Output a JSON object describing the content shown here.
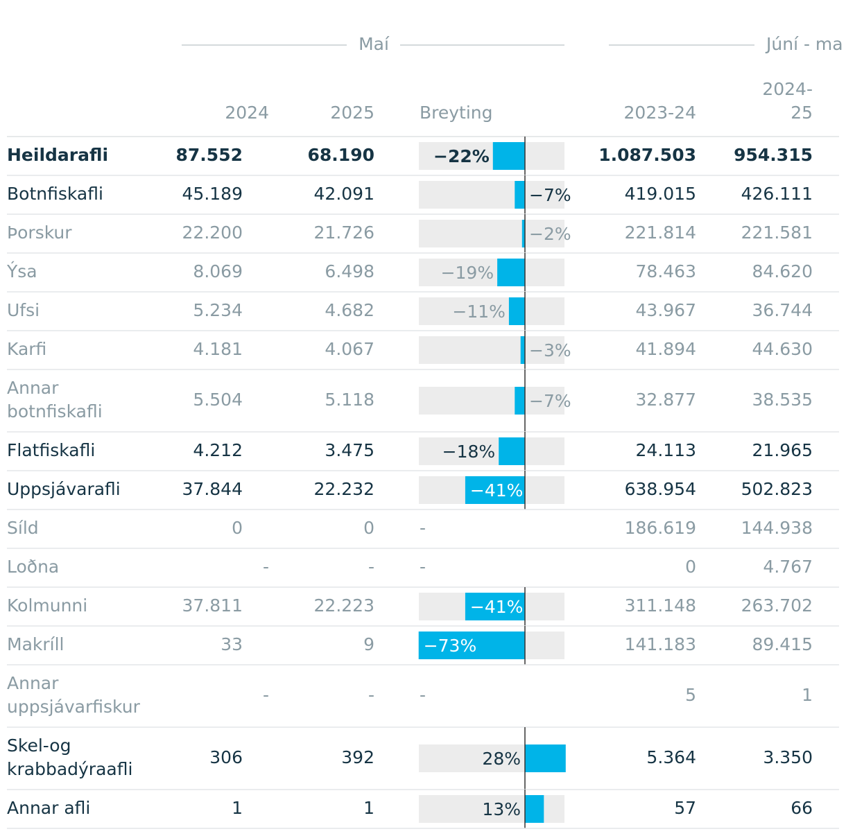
{
  "header": {
    "group1": "Maí",
    "group2": "Júní - ma",
    "columns": [
      [
        "2024"
      ],
      [
        "2025"
      ],
      [
        "Breyting"
      ],
      [
        "2023-24"
      ],
      [
        "2024-",
        "25"
      ]
    ]
  },
  "table": {
    "rows": [
      {
        "label": [
          "Heildarafli"
        ],
        "style": "bold",
        "v2024": "87.552",
        "v2025": "68.190",
        "change": -22,
        "change_label": "−22%",
        "v2324": "1.087.503",
        "v2425": "954.315"
      },
      {
        "label": [
          "Botnfiskafli"
        ],
        "style": "dark",
        "v2024": "45.189",
        "v2025": "42.091",
        "change": -7,
        "change_label": "−7%",
        "v2324": "419.015",
        "v2425": "426.111"
      },
      {
        "label": [
          "Þorskur"
        ],
        "style": "grey",
        "v2024": "22.200",
        "v2025": "21.726",
        "change": -2,
        "change_label": "−2%",
        "v2324": "221.814",
        "v2425": "221.581"
      },
      {
        "label": [
          "Ýsa"
        ],
        "style": "grey",
        "v2024": "8.069",
        "v2025": "6.498",
        "change": -19,
        "change_label": "−19%",
        "v2324": "78.463",
        "v2425": "84.620"
      },
      {
        "label": [
          "Ufsi"
        ],
        "style": "grey",
        "v2024": "5.234",
        "v2025": "4.682",
        "change": -11,
        "change_label": "−11%",
        "v2324": "43.967",
        "v2425": "36.744"
      },
      {
        "label": [
          "Karfi"
        ],
        "style": "grey",
        "v2024": "4.181",
        "v2025": "4.067",
        "change": -3,
        "change_label": "−3%",
        "v2324": "41.894",
        "v2425": "44.630"
      },
      {
        "label": [
          "Annar",
          "botnfiskafli"
        ],
        "style": "grey",
        "v2024": "5.504",
        "v2025": "5.118",
        "change": -7,
        "change_label": "−7%",
        "v2324": "32.877",
        "v2425": "38.535"
      },
      {
        "label": [
          "Flatfiskafli"
        ],
        "style": "dark",
        "v2024": "4.212",
        "v2025": "3.475",
        "change": -18,
        "change_label": "−18%",
        "v2324": "24.113",
        "v2425": "21.965"
      },
      {
        "label": [
          "Uppsjávarafli"
        ],
        "style": "dark",
        "v2024": "37.844",
        "v2025": "22.232",
        "change": -41,
        "change_label": "−41%",
        "v2324": "638.954",
        "v2425": "502.823"
      },
      {
        "label": [
          "Síld"
        ],
        "style": "grey",
        "v2024": "0",
        "v2025": "0",
        "change": null,
        "change_label": "-",
        "v2324": "186.619",
        "v2425": "144.938"
      },
      {
        "label": [
          "Loðna"
        ],
        "style": "grey",
        "v2024": "-",
        "v2025": "-",
        "change": null,
        "change_label": "-",
        "v2324": "0",
        "v2425": "4.767"
      },
      {
        "label": [
          "Kolmunni"
        ],
        "style": "grey",
        "v2024": "37.811",
        "v2025": "22.223",
        "change": -41,
        "change_label": "−41%",
        "v2324": "311.148",
        "v2425": "263.702"
      },
      {
        "label": [
          "Makríll"
        ],
        "style": "grey",
        "v2024": "33",
        "v2025": "9",
        "change": -73,
        "change_label": "−73%",
        "v2324": "141.183",
        "v2425": "89.415"
      },
      {
        "label": [
          "Annar",
          "uppsjávarfiskur"
        ],
        "style": "grey",
        "v2024": "-",
        "v2025": "-",
        "change": null,
        "change_label": "-",
        "v2324": "5",
        "v2425": "1"
      },
      {
        "label": [
          "Skel-og",
          "krabbadýraafli"
        ],
        "style": "dark",
        "v2024": "306",
        "v2025": "392",
        "change": 28,
        "change_label": "28%",
        "v2324": "5.364",
        "v2425": "3.350"
      },
      {
        "label": [
          "Annar afli"
        ],
        "style": "dark",
        "v2024": "1",
        "v2025": "1",
        "change": 13,
        "change_label": "13%",
        "v2324": "57",
        "v2425": "66"
      }
    ]
  }
}
